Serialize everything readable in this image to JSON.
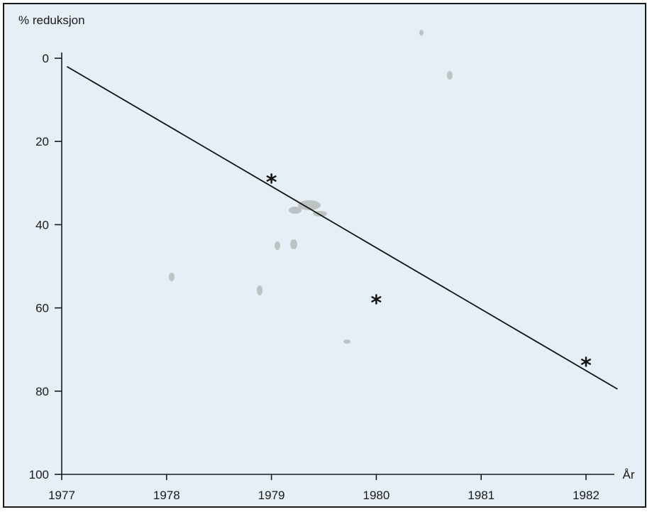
{
  "chart_data": {
    "type": "scatter",
    "ylabel": "% reduksjon",
    "xlabel": "År",
    "x_ticks": [
      1977,
      1978,
      1979,
      1980,
      1981,
      1982
    ],
    "y_ticks": [
      0,
      20,
      40,
      60,
      80,
      100
    ],
    "xlim": [
      1977,
      1982.35
    ],
    "ylim": [
      0,
      100
    ],
    "y_inverted": true,
    "grid": false,
    "series": [
      {
        "kind": "points",
        "marker": "asterisk",
        "points": [
          {
            "x": 1979,
            "y": 28
          },
          {
            "x": 1980,
            "y": 57
          },
          {
            "x": 1982,
            "y": 72
          }
        ]
      },
      {
        "kind": "trend-line",
        "points": [
          {
            "x": 1977.05,
            "y": 2
          },
          {
            "x": 1982.3,
            "y": 79.5
          }
        ]
      }
    ]
  },
  "colors": {
    "background": "#e6eef6",
    "ink": "#111111"
  }
}
